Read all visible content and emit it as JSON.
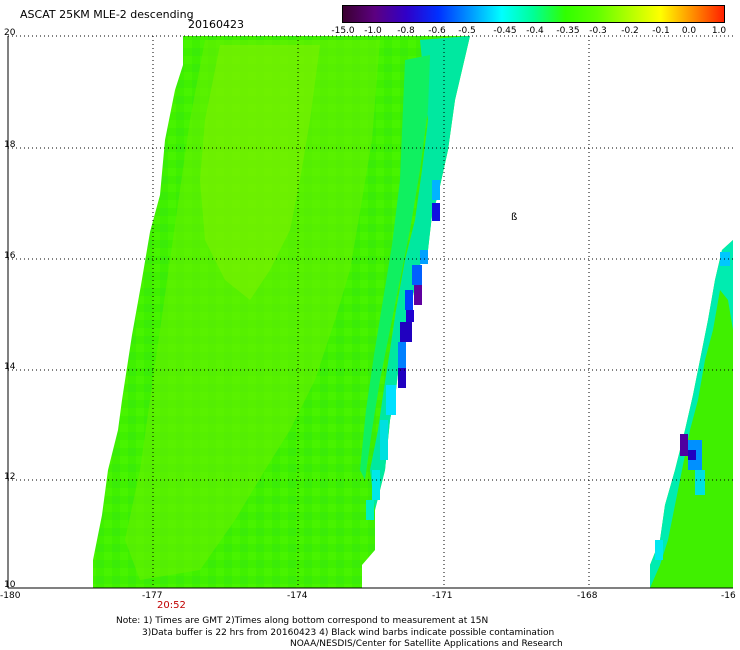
{
  "header": {
    "title": "ASCAT 25KM MLE-2 descending",
    "date": "20160423"
  },
  "colorbar": {
    "labels": [
      "-15.0",
      "-1.0",
      "-0.8",
      "-0.6",
      "-0.5",
      "-0.45",
      "-0.4",
      "-0.35",
      "-0.3",
      "-0.2",
      "-0.1",
      "0.0",
      "1.0"
    ],
    "colors": [
      "#3a0030",
      "#5c0080",
      "#3000c8",
      "#0030ff",
      "#0096ff",
      "#00ffff",
      "#00ff96",
      "#30ff00",
      "#60ff00",
      "#b0ff00",
      "#ffff00",
      "#ff9000",
      "#ff2000"
    ]
  },
  "map": {
    "lat_labels": [
      "20",
      "18",
      "16",
      "14",
      "12",
      "10"
    ],
    "lon_labels": [
      "-180",
      "-177",
      "-174",
      "-171",
      "-168",
      "-16"
    ],
    "orbit_time": "20:52",
    "barb_symbol": "ß"
  },
  "footer": {
    "line1": "Note: 1) Times are GMT 2)Times along bottom correspond to measurement at 15N",
    "line2": "3)Data buffer is 22 hrs from 20160423 4) Black wind barbs indicate possible contamination",
    "line3": "NOAA/NESDIS/Center for Satellite Applications and Research"
  }
}
